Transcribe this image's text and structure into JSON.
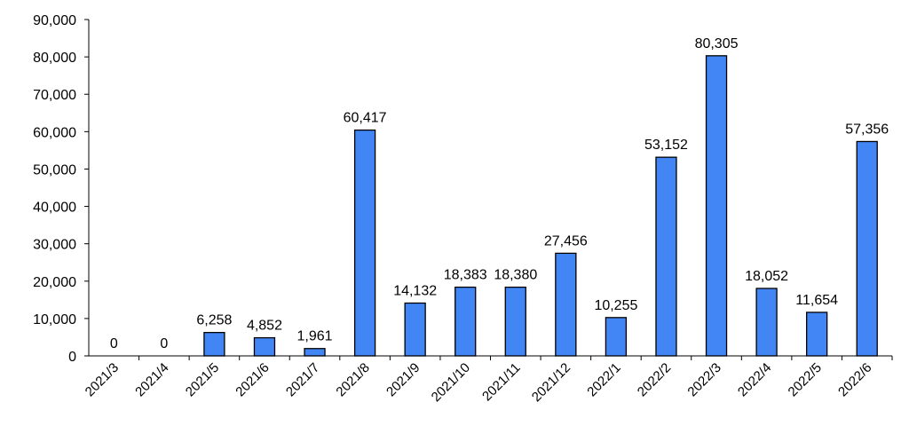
{
  "chart_data": {
    "type": "bar",
    "title": "",
    "xlabel": "",
    "ylabel": "",
    "categories": [
      "2021/3",
      "2021/4",
      "2021/5",
      "2021/6",
      "2021/7",
      "2021/8",
      "2021/9",
      "2021/10",
      "2021/11",
      "2021/12",
      "2022/1",
      "2022/2",
      "2022/3",
      "2022/4",
      "2022/5",
      "2022/6"
    ],
    "values": [
      0,
      0,
      6258,
      4852,
      1961,
      60417,
      14132,
      18383,
      18380,
      27456,
      10255,
      53152,
      80305,
      18052,
      11654,
      57356
    ],
    "data_labels": [
      "0",
      "0",
      "6,258",
      "4,852",
      "1,961",
      "60,417",
      "14,132",
      "18,383",
      "18,380",
      "27,456",
      "10,255",
      "53,152",
      "80,305",
      "18,052",
      "11,654",
      "57,356"
    ],
    "ylim": [
      0,
      90000
    ],
    "yticks": [
      "0",
      "10,000",
      "20,000",
      "30,000",
      "40,000",
      "50,000",
      "60,000",
      "70,000",
      "80,000",
      "90,000"
    ],
    "grid": false,
    "legend": "none",
    "bar_color": "#4285F4",
    "bar_edge_color": "#000000"
  }
}
